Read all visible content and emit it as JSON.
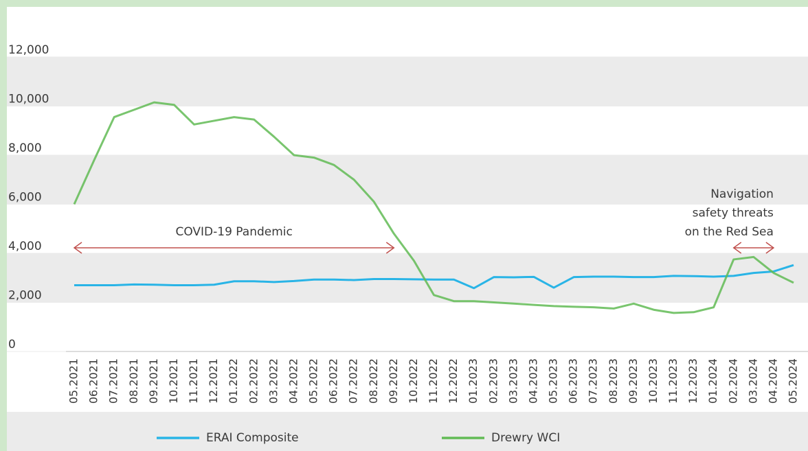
{
  "chart_data": {
    "type": "line",
    "categories": [
      "05.2021",
      "06.2021",
      "07.2021",
      "08.2021",
      "09.2021",
      "10.2021",
      "11.2021",
      "12.2021",
      "01.2022",
      "02.2022",
      "03.2022",
      "04.2022",
      "05.2022",
      "06.2022",
      "07.2022",
      "08.2022",
      "09.2022",
      "10.2022",
      "11.2022",
      "12.2022",
      "01.2023",
      "02.2023",
      "03.2023",
      "04.2023",
      "05.2023",
      "06.2023",
      "07.2023",
      "08.2023",
      "09.2023",
      "10.2023",
      "11.2023",
      "12.2023",
      "01.2024",
      "02.2024",
      "03.2024",
      "04.2024",
      "05.2024"
    ],
    "series": [
      {
        "name": "ERAI Composite",
        "color": "#29b4e6",
        "values": [
          2700,
          2700,
          2700,
          2730,
          2720,
          2700,
          2700,
          2720,
          2860,
          2860,
          2830,
          2870,
          2930,
          2930,
          2910,
          2950,
          2950,
          2940,
          2930,
          2930,
          2580,
          3030,
          3020,
          3040,
          2600,
          3030,
          3050,
          3050,
          3030,
          3030,
          3080,
          3070,
          3050,
          3080,
          3200,
          3260,
          3520
        ]
      },
      {
        "name": "Drewry WCI",
        "color": "#62bb55",
        "values": [
          6000,
          7800,
          9550,
          9850,
          10150,
          10050,
          9250,
          9400,
          9550,
          9450,
          8750,
          8000,
          7900,
          7600,
          7000,
          6100,
          4800,
          3700,
          2300,
          2050,
          2050,
          2000,
          1950,
          1900,
          1850,
          1820,
          1800,
          1750,
          1950,
          1700,
          1570,
          1600,
          1800,
          3750,
          3850,
          3200,
          2800
        ]
      }
    ],
    "ylim": [
      0,
      12000
    ],
    "yticks": [
      0,
      {
        "value": 2000,
        "label": "2,000"
      },
      {
        "value": 4000,
        "label": "4,000"
      },
      {
        "value": 6000,
        "label": "6,000"
      },
      {
        "value": 8000,
        "label": "8,000"
      },
      {
        "value": 10000,
        "label": "10,000"
      },
      {
        "value": 12000,
        "label": "12,000"
      }
    ],
    "annotations": [
      {
        "text": [
          "COVID-19 Pandemic"
        ],
        "from": "05.2021",
        "to": "09.2022"
      },
      {
        "text": [
          "Navigation",
          "safety threats",
          "on the Red Sea"
        ],
        "from": "02.2024",
        "to": "04.2024"
      }
    ],
    "annotation_color": "#c0504d",
    "band_color": "#ebebeb"
  }
}
